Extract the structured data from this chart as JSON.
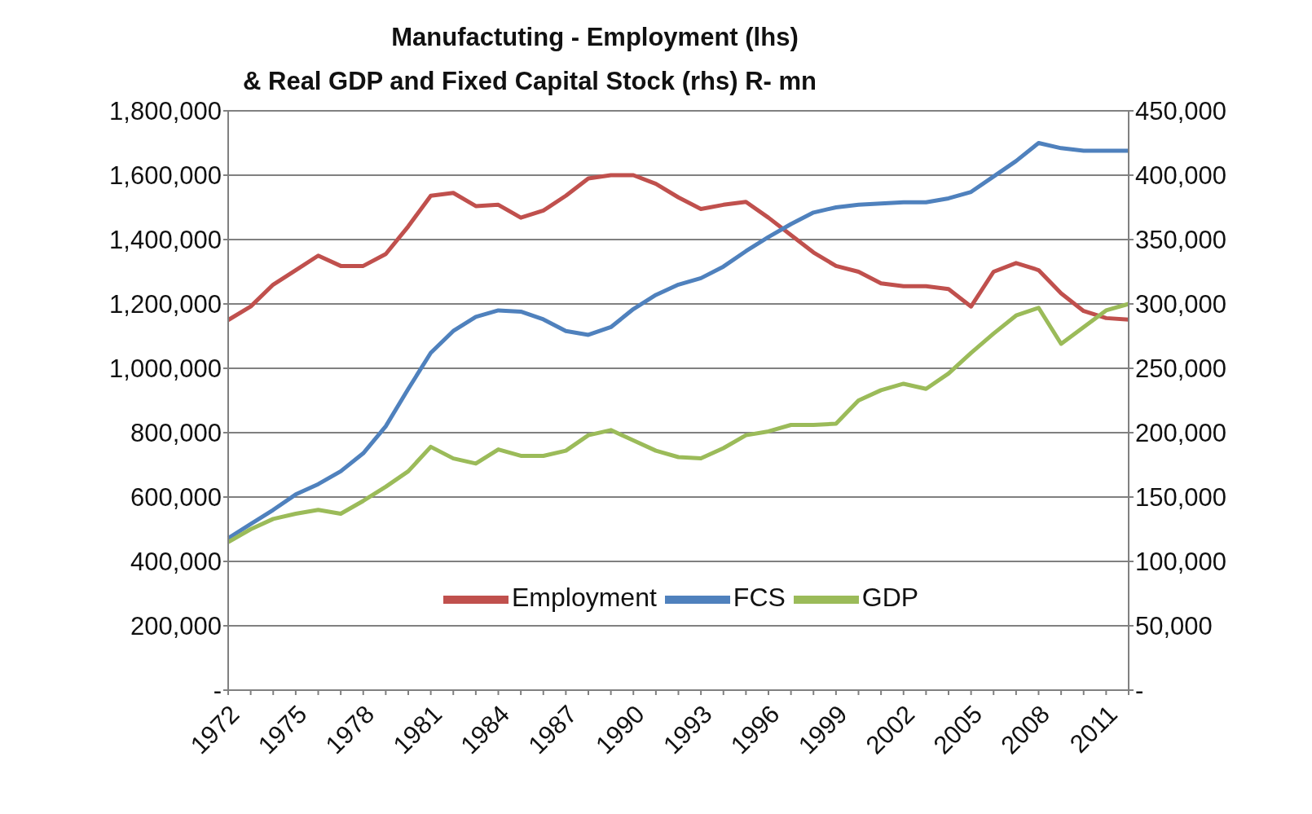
{
  "chart_data": {
    "type": "line",
    "title": "Manufactuting  - Employment (lhs)",
    "subtitle": "& Real GDP and Fixed Capital Stock (rhs) R- mn",
    "categories": [
      "1972",
      null,
      null,
      "1975",
      null,
      null,
      "1978",
      null,
      null,
      "1981",
      null,
      null,
      "1984",
      null,
      null,
      "1987",
      null,
      null,
      "1990",
      null,
      null,
      "1993",
      null,
      null,
      "1996",
      null,
      null,
      "1999",
      null,
      null,
      "2002",
      null,
      null,
      "2005",
      null,
      null,
      "2008",
      null,
      null,
      "2011",
      null
    ],
    "series": [
      {
        "name": "Employment",
        "color": "#c0504d",
        "values": [
          1150000,
          1192000,
          1260000,
          1305000,
          1350000,
          1318000,
          1318000,
          1355000,
          1441000,
          1536000,
          1545000,
          1504000,
          1508000,
          1468000,
          1490000,
          1536000,
          1590000,
          1600000,
          1600000,
          1573000,
          1531000,
          1495000,
          1508000,
          1517000,
          1468000,
          1414000,
          1360000,
          1318000,
          1300000,
          1264000,
          1255000,
          1255000,
          1246000,
          1192000,
          1300000,
          1327000,
          1305000,
          1233000,
          1178000,
          1156000,
          1151000
        ]
      },
      {
        "name": "FCS",
        "color": "#4f81bd",
        "axis": "y2",
        "values": [
          118000,
          129000,
          140000,
          152000,
          160000,
          170000,
          184000,
          205000,
          234000,
          262000,
          279000,
          290000,
          295000,
          294000,
          288000,
          279000,
          276000,
          282000,
          296000,
          307000,
          315000,
          320000,
          329000,
          341000,
          352000,
          362000,
          371000,
          375000,
          377000,
          378000,
          379000,
          379000,
          382000,
          387000,
          399000,
          411000,
          425000,
          421000,
          419000,
          419000,
          419000
        ]
      },
      {
        "name": "GDP",
        "color": "#9bbb59",
        "axis": "y2",
        "values": [
          115000,
          125000,
          133000,
          137000,
          140000,
          137000,
          147000,
          158000,
          170000,
          189000,
          180000,
          176000,
          187000,
          182000,
          182000,
          186000,
          198000,
          202000,
          194000,
          186000,
          181000,
          180000,
          188000,
          198000,
          201000,
          206000,
          206000,
          207000,
          225000,
          233000,
          238000,
          234000,
          246000,
          262000,
          277000,
          291000,
          297000,
          269000,
          282000,
          295000,
          300000
        ]
      }
    ],
    "ylim": [
      0,
      1800000
    ],
    "yticks": [
      {
        "value": 0,
        "label": "-"
      },
      {
        "value": 200000,
        "label": "200,000"
      },
      {
        "value": 400000,
        "label": "400,000"
      },
      {
        "value": 600000,
        "label": "600,000"
      },
      {
        "value": 800000,
        "label": "800,000"
      },
      {
        "value": 1000000,
        "label": "1,000,000"
      },
      {
        "value": 1200000,
        "label": "1,200,000"
      },
      {
        "value": 1400000,
        "label": "1,400,000"
      },
      {
        "value": 1600000,
        "label": "1,600,000"
      },
      {
        "value": 1800000,
        "label": "1,800,000"
      }
    ],
    "y2lim": [
      0,
      450000
    ],
    "y2ticks": [
      {
        "value": 0,
        "label": "-"
      },
      {
        "value": 50000,
        "label": "50,000"
      },
      {
        "value": 100000,
        "label": "100,000"
      },
      {
        "value": 150000,
        "label": "150,000"
      },
      {
        "value": 200000,
        "label": "200,000"
      },
      {
        "value": 250000,
        "label": "250,000"
      },
      {
        "value": 300000,
        "label": "300,000"
      },
      {
        "value": 350000,
        "label": "350,000"
      },
      {
        "value": 400000,
        "label": "400,000"
      },
      {
        "value": 450000,
        "label": "450,000"
      }
    ],
    "grid": "y",
    "legend": "bottom",
    "marker": "none",
    "line_style": "solid"
  }
}
